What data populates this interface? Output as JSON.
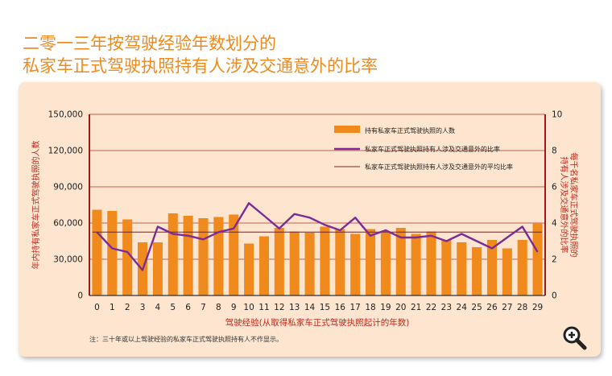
{
  "title": {
    "line1": "二零一三年按驾驶经验年数划分的",
    "line2": "私家车正式驾驶执照持有人涉及交通意外的比率"
  },
  "note": "注：三十年或以上驾驶经验的私家车正式驾驶执照持有人不作显示。",
  "zoom_icon": "magnifier-plus-icon",
  "colors": {
    "bar": "#f08a1c",
    "rate_line": "#7b2c96",
    "avg_line": "#6b2a24",
    "axis": "#a01818",
    "axis_label": "#c0281e",
    "panel": "#fde5cf",
    "title": "#f08a1c"
  },
  "chart_data": {
    "type": "bar",
    "categories": [
      "0",
      "1",
      "2",
      "3",
      "4",
      "5",
      "6",
      "7",
      "8",
      "9",
      "10",
      "11",
      "12",
      "13",
      "14",
      "15",
      "16",
      "17",
      "18",
      "19",
      "20",
      "21",
      "22",
      "23",
      "24",
      "25",
      "26",
      "27",
      "28",
      "29"
    ],
    "xlabel": "驾驶经验(从取得私家车正式驾驶执照起计的年数)",
    "ylabel_left": "年内持有私家车正式驾驶执照的人数",
    "ylabel_right": "每千名私家车正式驾驶执照的持有人涉及交通意外的比率",
    "ylim_left": [
      0,
      150000
    ],
    "ylim_right": [
      0,
      10
    ],
    "yticks_left": [
      "0",
      "30,000",
      "60,000",
      "90,000",
      "120,000",
      "150,000"
    ],
    "yticks_right": [
      "0",
      "2",
      "4",
      "6",
      "8",
      "10"
    ],
    "grid": true,
    "legend_position": "top-right",
    "series": [
      {
        "name": "持有私家车正式驾驶执照的人数",
        "type": "bar",
        "axis": "left",
        "values": [
          71000,
          70000,
          63000,
          44000,
          44000,
          68000,
          66000,
          64000,
          65000,
          67000,
          43000,
          49000,
          56000,
          53000,
          52000,
          57000,
          55000,
          51000,
          55000,
          53000,
          56000,
          51000,
          53000,
          46000,
          44000,
          40000,
          46000,
          39000,
          46000,
          60000
        ]
      },
      {
        "name": "私家车正式驾驶执照持有人涉及交通意外的比率",
        "type": "line",
        "axis": "right",
        "values": [
          3.5,
          2.6,
          2.4,
          1.4,
          3.8,
          3.4,
          3.3,
          3.1,
          3.5,
          3.7,
          5.1,
          4.4,
          3.7,
          4.5,
          4.3,
          3.9,
          3.6,
          4.3,
          3.3,
          3.6,
          3.2,
          3.2,
          3.3,
          3.0,
          3.4,
          3.0,
          2.6,
          3.2,
          3.8,
          2.4
        ]
      },
      {
        "name": "私家车正式驾驶执照持有人涉及交通意外的平均比率",
        "type": "hline",
        "axis": "right",
        "value": 3.5
      }
    ]
  }
}
